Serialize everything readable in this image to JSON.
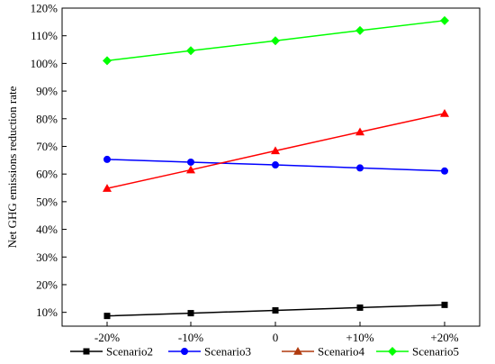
{
  "chart_data": {
    "type": "line",
    "title": "",
    "xlabel": "",
    "ylabel": "Net GHG emissions reduction rate",
    "categories": [
      "-20%",
      "-10%",
      "0",
      "+10%",
      "+20%"
    ],
    "y_ticks": [
      "10%",
      "20%",
      "30%",
      "40%",
      "50%",
      "60%",
      "70%",
      "80%",
      "90%",
      "100%",
      "110%",
      "120%"
    ],
    "ylim": [
      5,
      120
    ],
    "y_unit": "%",
    "grid": false,
    "legend_position": "bottom",
    "series": [
      {
        "name": "Scenario2",
        "color": "#000000",
        "marker": "square",
        "values": [
          8.7,
          9.7,
          10.7,
          11.7,
          12.7
        ]
      },
      {
        "name": "Scenario3",
        "color": "#0000ff",
        "marker": "circle",
        "values": [
          65.3,
          64.3,
          63.3,
          62.2,
          61.1
        ]
      },
      {
        "name": "Scenario4",
        "color": "#ff0000",
        "legend_color": "#b03a0e",
        "marker": "triangle",
        "values": [
          54.8,
          61.5,
          68.4,
          75.2,
          81.9
        ]
      },
      {
        "name": "Scenario5",
        "color": "#00ff00",
        "marker": "diamond",
        "values": [
          101.0,
          104.6,
          108.2,
          111.9,
          115.5
        ]
      }
    ]
  }
}
